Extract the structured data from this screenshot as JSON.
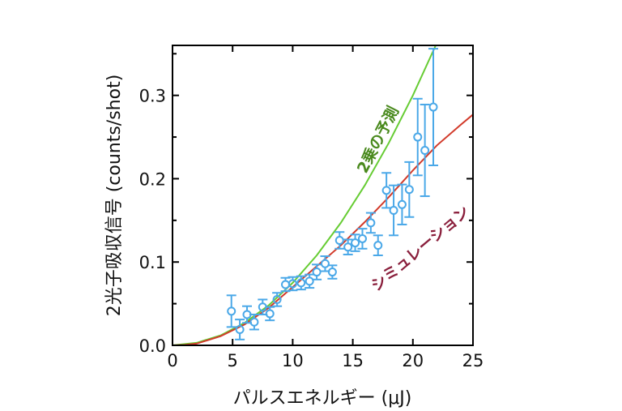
{
  "chart_data": {
    "type": "scatter",
    "xlabel": "パルスエネルギー (μJ)",
    "ylabel": "2光子吸収信号 (counts/shot)",
    "xlim": [
      0,
      25
    ],
    "ylim": [
      0,
      0.36
    ],
    "xticks": [
      "0",
      "5",
      "10",
      "15",
      "20",
      "25"
    ],
    "xtick_values": [
      0,
      5,
      10,
      15,
      20,
      25
    ],
    "yticks": [
      "0.0",
      "0.1",
      "0.2",
      "0.3"
    ],
    "ytick_values": [
      0,
      0.1,
      0.2,
      0.3
    ],
    "grid": false,
    "colors": {
      "data": "#4aa8e8",
      "quadratic": "#66cc33",
      "simulation": "#d23a2a",
      "quadratic_label": "#4a8a1e",
      "simulation_label": "#8a1f3c"
    },
    "data_points": {
      "x": [
        4.9,
        5.6,
        6.2,
        6.8,
        7.5,
        8.1,
        8.7,
        9.4,
        10.0,
        10.7,
        11.4,
        12.0,
        12.7,
        13.3,
        13.9,
        14.6,
        15.2,
        15.8,
        16.5,
        17.1,
        17.8,
        18.4,
        19.1,
        19.7,
        20.4,
        21.0,
        21.7
      ],
      "y": [
        0.041,
        0.019,
        0.037,
        0.028,
        0.046,
        0.038,
        0.055,
        0.073,
        0.074,
        0.075,
        0.077,
        0.088,
        0.098,
        0.088,
        0.126,
        0.118,
        0.123,
        0.128,
        0.147,
        0.12,
        0.186,
        0.162,
        0.169,
        0.187,
        0.25,
        0.234,
        0.286
      ],
      "err": [
        0.019,
        0.012,
        0.01,
        0.009,
        0.009,
        0.008,
        0.008,
        0.008,
        0.008,
        0.008,
        0.008,
        0.009,
        0.009,
        0.008,
        0.01,
        0.009,
        0.01,
        0.012,
        0.012,
        0.012,
        0.021,
        0.03,
        0.024,
        0.033,
        0.046,
        0.055,
        0.07
      ]
    },
    "series": [
      {
        "name": "2乗の予測",
        "x": [
          0,
          2,
          4,
          6,
          8,
          10,
          12,
          14,
          16,
          18,
          20,
          21.9
        ],
        "y": [
          0,
          0.003,
          0.012,
          0.027,
          0.048,
          0.075,
          0.108,
          0.147,
          0.192,
          0.243,
          0.3,
          0.36
        ]
      },
      {
        "name": "シミュレーション",
        "x": [
          0,
          1,
          2,
          4,
          6,
          8,
          10,
          12,
          14,
          16,
          18,
          20,
          22,
          24,
          25
        ],
        "y": [
          0,
          0.0005,
          0.002,
          0.011,
          0.025,
          0.045,
          0.07,
          0.095,
          0.12,
          0.148,
          0.178,
          0.21,
          0.24,
          0.265,
          0.277
        ]
      }
    ]
  }
}
